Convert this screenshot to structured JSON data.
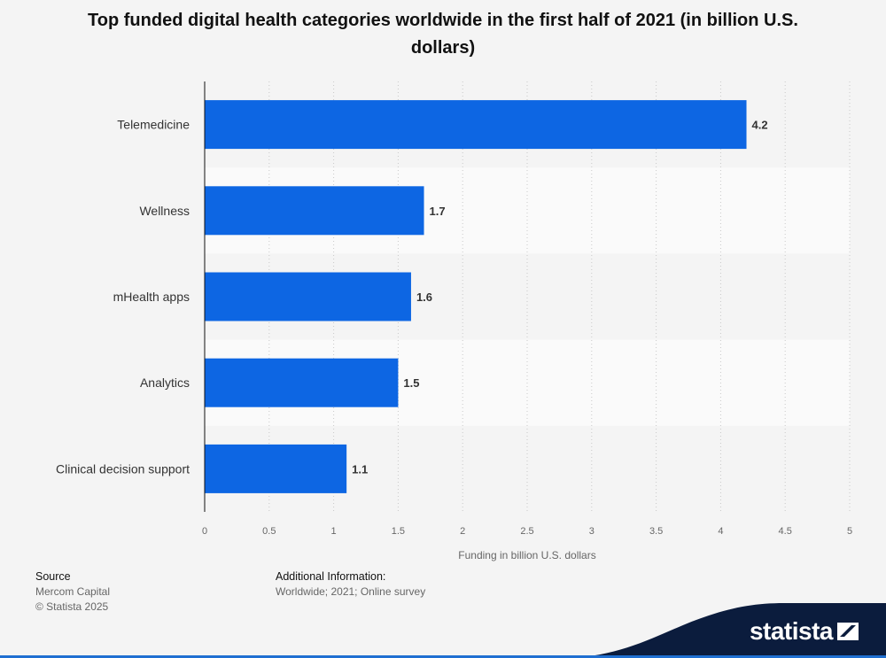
{
  "chart_data": {
    "type": "bar",
    "orientation": "horizontal",
    "title": "Top funded digital health categories worldwide in the first half of 2021 (in billion U.S. dollars)",
    "categories": [
      "Telemedicine",
      "Wellness",
      "mHealth apps",
      "Analytics",
      "Clinical decision support"
    ],
    "values": [
      4.2,
      1.7,
      1.6,
      1.5,
      1.1
    ],
    "value_labels": [
      "4.2",
      "1.7",
      "1.6",
      "1.5",
      "1.1"
    ],
    "xlabel": "Funding in billion U.S. dollars",
    "ylabel": "",
    "xlim": [
      0,
      5
    ],
    "xticks": [
      0,
      0.5,
      1,
      1.5,
      2,
      2.5,
      3,
      3.5,
      4,
      4.5,
      5
    ],
    "xtick_labels": [
      "0",
      "0.5",
      "1",
      "1.5",
      "2",
      "2.5",
      "3",
      "3.5",
      "4",
      "4.5",
      "5"
    ],
    "grid": true,
    "legend": "none",
    "bar_color": "#0d66e3"
  },
  "footer": {
    "source_heading": "Source",
    "source_name": "Mercom Capital",
    "copyright": "© Statista 2025",
    "additional_heading": "Additional Information:",
    "additional_text": "Worldwide; 2021; Online survey"
  },
  "brand": {
    "name": "statista",
    "wave_color": "#0b1c3d",
    "accent_color": "#1f6fd1"
  }
}
